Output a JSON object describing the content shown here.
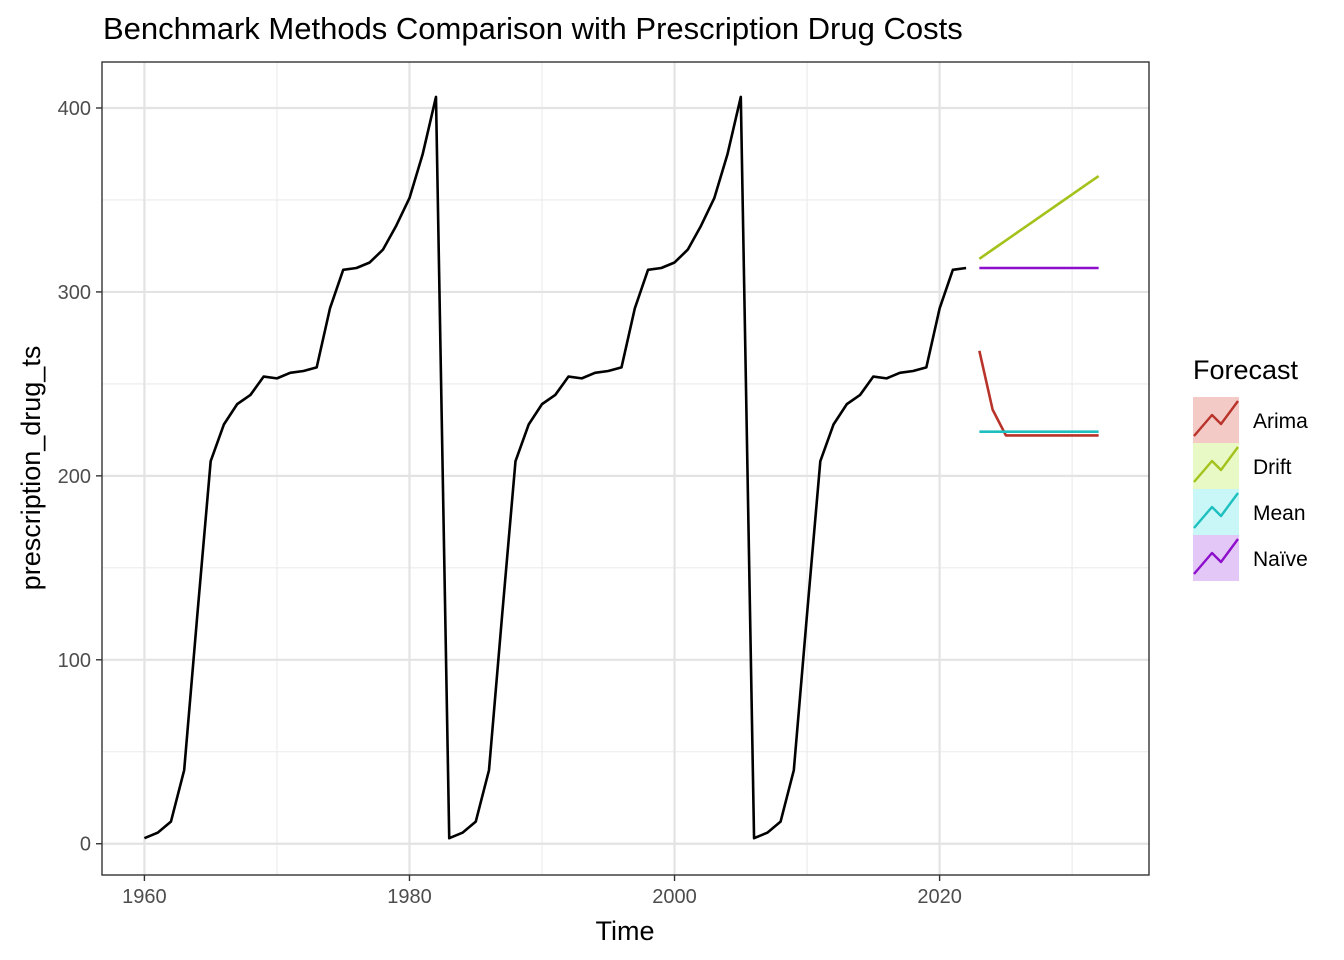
{
  "chart_data": {
    "type": "line",
    "title": "Benchmark Methods Comparison with Prescription Drug Costs",
    "xlabel": "Time",
    "ylabel": "prescription_drug_ts",
    "xlim": [
      1956.8,
      2035.8
    ],
    "ylim": [
      -17,
      425
    ],
    "x_ticks": [
      1960,
      1980,
      2000,
      2020
    ],
    "y_ticks": [
      0,
      100,
      200,
      300,
      400
    ],
    "x_minor": [
      1970,
      1990,
      2010,
      2030
    ],
    "y_minor": [
      50,
      150,
      250,
      350
    ],
    "grid": true,
    "history": {
      "x": [
        1960,
        1961,
        1962,
        1963,
        1964,
        1965,
        1966,
        1967,
        1968,
        1969,
        1970,
        1971,
        1972,
        1973,
        1974,
        1975,
        1976,
        1977,
        1978,
        1979,
        1980,
        1981,
        1982,
        1983,
        1984,
        1985,
        1986,
        1987,
        1988,
        1989,
        1990,
        1991,
        1992,
        1993,
        1994,
        1995,
        1996,
        1997,
        1998,
        1999,
        2000,
        2001,
        2002,
        2003,
        2004,
        2005,
        2006,
        2007,
        2008,
        2009,
        2010,
        2011,
        2012,
        2013,
        2014,
        2015,
        2016,
        2017,
        2018,
        2019,
        2020,
        2021,
        2022
      ],
      "y": [
        3,
        6,
        12,
        40,
        125,
        208,
        228,
        239,
        244,
        254,
        253,
        256,
        257,
        259,
        291,
        312,
        313,
        316,
        323,
        336,
        351,
        375,
        406,
        3,
        6,
        12,
        40,
        125,
        208,
        228,
        239,
        244,
        254,
        253,
        256,
        257,
        259,
        291,
        312,
        313,
        316,
        323,
        336,
        351,
        375,
        406,
        3,
        6,
        12,
        40,
        125,
        208,
        228,
        239,
        244,
        254,
        253,
        256,
        257,
        259,
        291,
        312,
        313
      ],
      "color": "#000000"
    },
    "legend": {
      "title": "Forecast",
      "position": "right"
    },
    "series": [
      {
        "name": "Arima",
        "color": "#B8332A",
        "fill": "#F4CAC6",
        "x": [
          2023,
          2024,
          2025,
          2026,
          2027,
          2028,
          2029,
          2030,
          2031,
          2032
        ],
        "y": [
          268,
          236,
          222,
          222,
          222,
          222,
          222,
          222,
          222,
          222
        ]
      },
      {
        "name": "Drift",
        "color": "#A3C21B",
        "fill": "#E9F9C6",
        "x": [
          2023,
          2024,
          2025,
          2026,
          2027,
          2028,
          2029,
          2030,
          2031,
          2032
        ],
        "y": [
          318,
          323,
          328,
          333,
          338,
          343,
          348,
          353,
          358,
          363
        ]
      },
      {
        "name": "Mean",
        "color": "#1DBFBF",
        "fill": "#C9F7F7",
        "x": [
          2023,
          2024,
          2025,
          2026,
          2027,
          2028,
          2029,
          2030,
          2031,
          2032
        ],
        "y": [
          224,
          224,
          224,
          224,
          224,
          224,
          224,
          224,
          224,
          224
        ]
      },
      {
        "name": "Naïve",
        "color": "#8E0FCB",
        "fill": "#E3C7F7",
        "x": [
          2023,
          2024,
          2025,
          2026,
          2027,
          2028,
          2029,
          2030,
          2031,
          2032
        ],
        "y": [
          313,
          313,
          313,
          313,
          313,
          313,
          313,
          313,
          313,
          313
        ]
      }
    ]
  }
}
